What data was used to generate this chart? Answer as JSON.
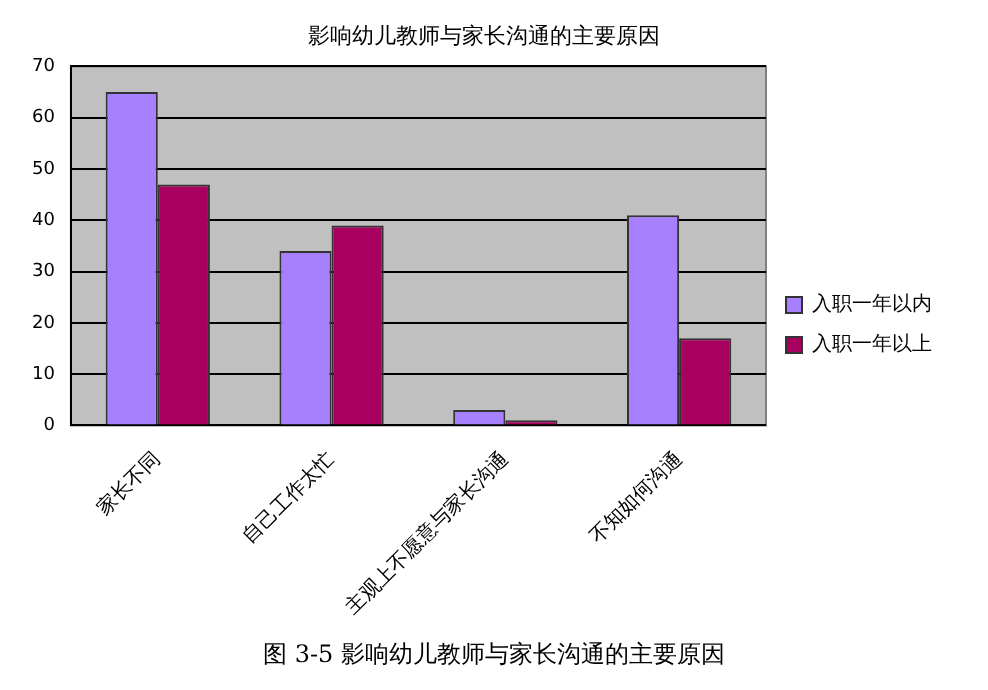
{
  "chart_data": {
    "type": "bar",
    "title": "影响幼儿教师与家长沟通的主要原因",
    "categories": [
      "家长不同",
      "自己工作太忙",
      "主观上不愿意与家长沟通",
      "不知如何沟通"
    ],
    "series": [
      {
        "name": "入职一年以内",
        "color": "#a680ff",
        "values": [
          65,
          34,
          3,
          41
        ]
      },
      {
        "name": "入职一年以上",
        "color": "#a8005f",
        "values": [
          47,
          39,
          1,
          17
        ]
      }
    ],
    "ylim": [
      0,
      70
    ],
    "yticks": [
      0,
      10,
      20,
      30,
      40,
      50,
      60,
      70
    ],
    "grid": "y",
    "legend": "right",
    "annotations": [
      "图 3-5 影响幼儿教师与家长沟通的主要原因"
    ]
  }
}
